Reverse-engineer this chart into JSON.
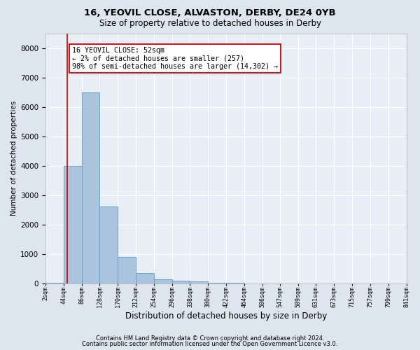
{
  "title1": "16, YEOVIL CLOSE, ALVASTON, DERBY, DE24 0YB",
  "title2": "Size of property relative to detached houses in Derby",
  "xlabel": "Distribution of detached houses by size in Derby",
  "ylabel": "Number of detached properties",
  "bin_edges": [
    2,
    44,
    86,
    128,
    170,
    212,
    254,
    296,
    338,
    380,
    422,
    464,
    506,
    547,
    589,
    631,
    673,
    715,
    757,
    799,
    841
  ],
  "bar_heights": [
    30,
    3980,
    6480,
    2600,
    900,
    340,
    145,
    95,
    70,
    25,
    12,
    4,
    2,
    1,
    0,
    0,
    0,
    0,
    0,
    0
  ],
  "bar_color": "#aac4de",
  "bar_edge_color": "#6699bb",
  "property_size": 52,
  "marker_line_color": "#cc0000",
  "annotation_text": "16 YEOVIL CLOSE: 52sqm\n← 2% of detached houses are smaller (257)\n98% of semi-detached houses are larger (14,302) →",
  "annotation_box_color": "white",
  "annotation_box_edge_color": "#cc0000",
  "ylim": [
    0,
    8500
  ],
  "yticks": [
    0,
    1000,
    2000,
    3000,
    4000,
    5000,
    6000,
    7000,
    8000
  ],
  "tick_labels": [
    "2sqm",
    "44sqm",
    "86sqm",
    "128sqm",
    "170sqm",
    "212sqm",
    "254sqm",
    "296sqm",
    "338sqm",
    "380sqm",
    "422sqm",
    "464sqm",
    "506sqm",
    "547sqm",
    "589sqm",
    "631sqm",
    "673sqm",
    "715sqm",
    "757sqm",
    "799sqm",
    "841sqm"
  ],
  "footer1": "Contains HM Land Registry data © Crown copyright and database right 2024.",
  "footer2": "Contains public sector information licensed under the Open Government Licence v3.0.",
  "background_color": "#dde5ef",
  "plot_background_color": "#e8eef6",
  "grid_color": "#ffffff",
  "title1_fontsize": 9.5,
  "title2_fontsize": 8.5,
  "ylabel_fontsize": 7.5,
  "xlabel_fontsize": 8.5,
  "tick_fontsize": 6.0,
  "footer_fontsize": 6.0
}
